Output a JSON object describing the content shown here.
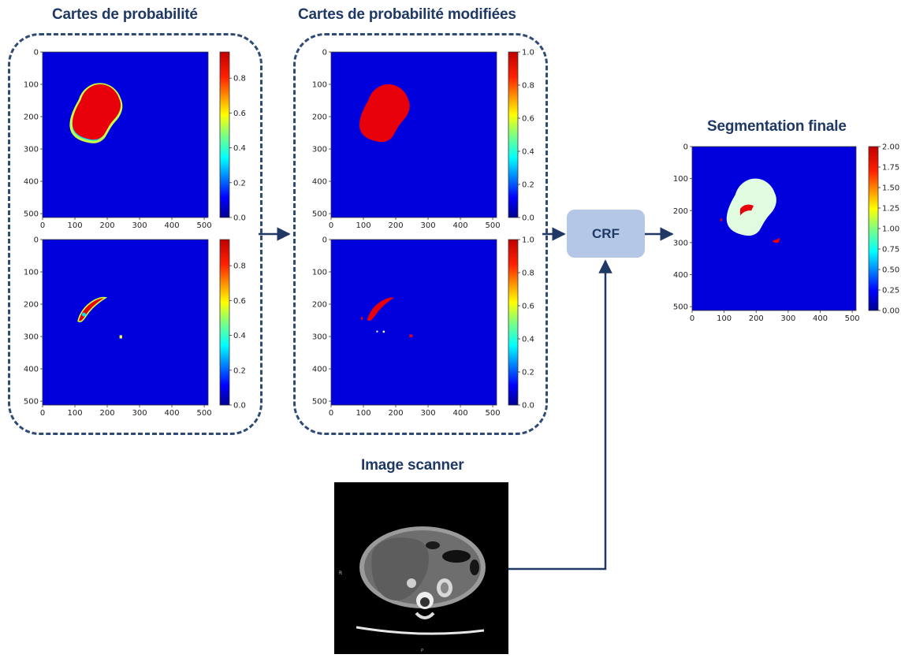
{
  "titles": {
    "prob": "Cartes de probabilité",
    "mod": "Cartes de probabilité modifiées",
    "seg": "Segmentation finale",
    "scanner": "Image scanner"
  },
  "crf_label": "CRF",
  "axis_ticks": [
    "0",
    "100",
    "200",
    "300",
    "400",
    "500"
  ],
  "colorbars": {
    "prob": [
      "0.0",
      "0.2",
      "0.4",
      "0.6",
      "0.8"
    ],
    "mod": [
      "0.0",
      "0.2",
      "0.4",
      "0.6",
      "0.8",
      "1.0"
    ],
    "seg": [
      "0.00",
      "0.25",
      "0.50",
      "0.75",
      "1.00",
      "1.25",
      "1.50",
      "1.75",
      "2.00"
    ]
  },
  "ct_labels": {
    "left": "R",
    "bottom": "P"
  },
  "colors": {
    "background_blue": "#0000dd",
    "region_red": "#e8000b",
    "region_light": "#e0fbe0",
    "arrow": "#1f3864",
    "dash_border": "#2f4a75",
    "crf_box": "#b4c7e7"
  }
}
